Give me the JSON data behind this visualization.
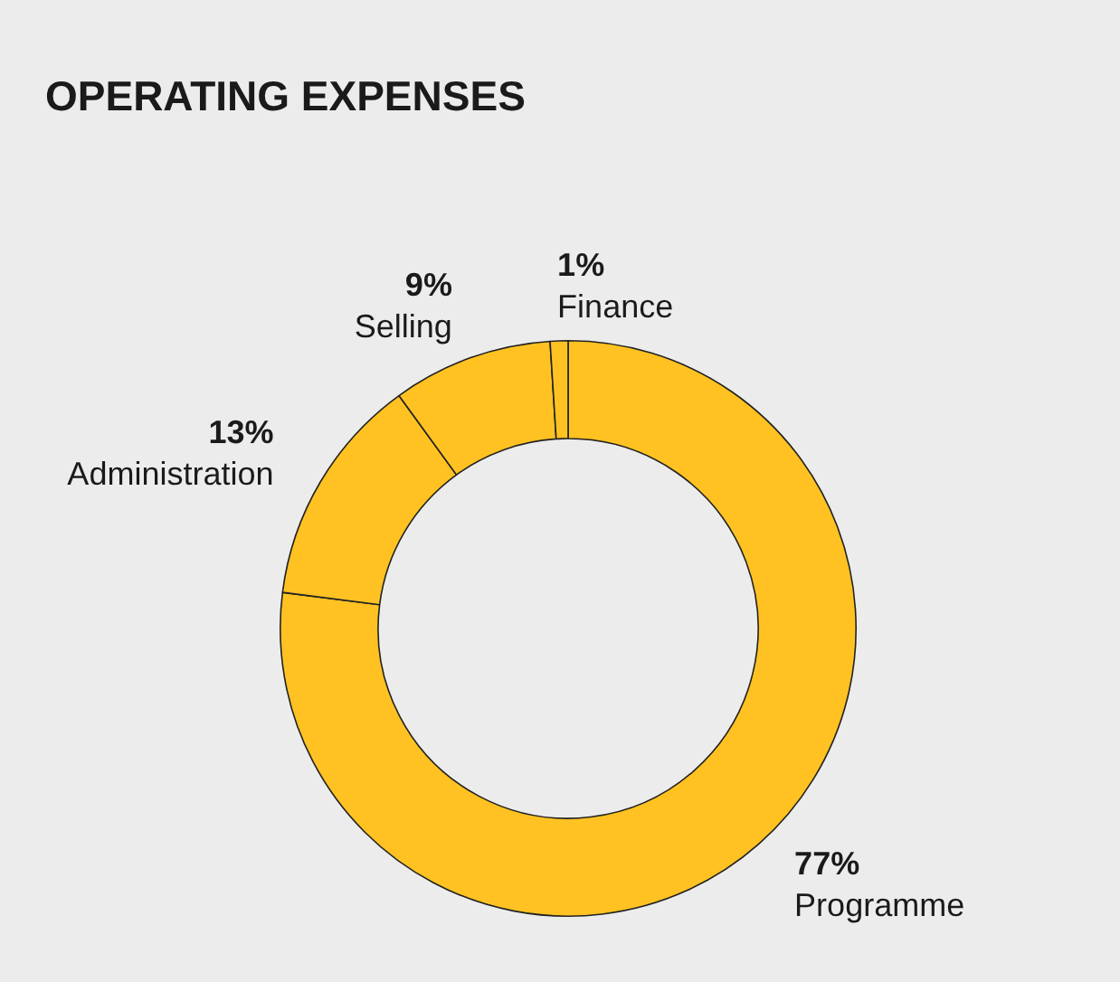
{
  "chart_data": {
    "type": "donut",
    "title": "OPERATING EXPENSES",
    "categories": [
      "Programme",
      "Administration",
      "Selling",
      "Finance"
    ],
    "values": [
      77,
      13,
      9,
      1
    ],
    "value_labels": [
      "77%",
      "13%",
      "9%",
      "1%"
    ],
    "colors": [
      "#ffc222",
      "#ffc222",
      "#ffc222",
      "#ffc222"
    ],
    "legend": false
  }
}
